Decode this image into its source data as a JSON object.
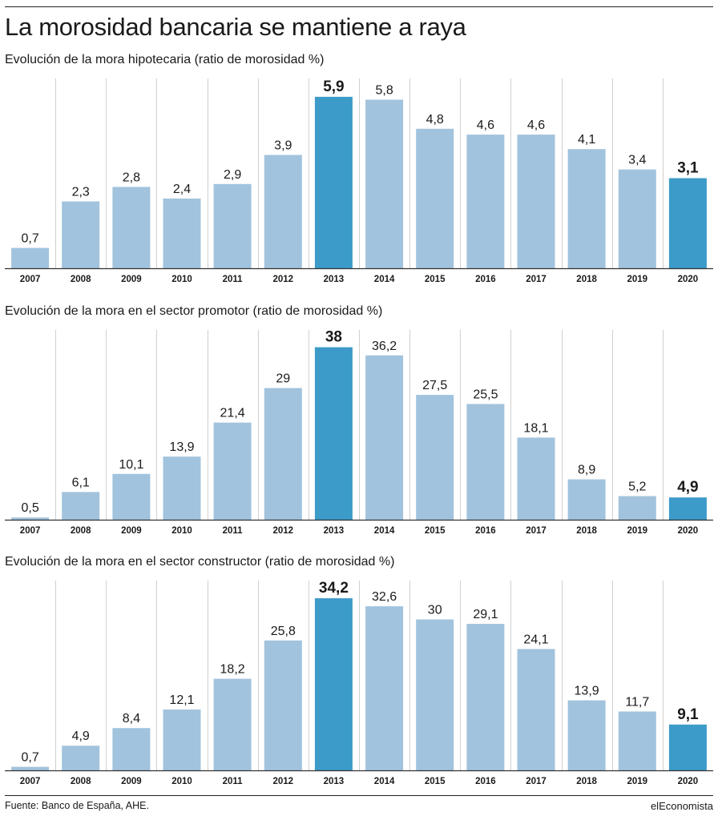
{
  "title": "La morosidad bancaria se mantiene a raya",
  "source": "Fuente: Banco de España, AHE.",
  "brand": "elEconomista",
  "colors": {
    "bar": "#a2c3dd",
    "highlight": "#3c9bc8",
    "grid": "#d0d0d0",
    "axis": "#333333"
  },
  "chart_data": [
    {
      "type": "bar",
      "title": "Evolución de la mora hipotecaria (ratio de morosidad %)",
      "categories": [
        "2007",
        "2008",
        "2009",
        "2010",
        "2011",
        "2012",
        "2013",
        "2014",
        "2015",
        "2016",
        "2017",
        "2018",
        "2019",
        "2020"
      ],
      "values": [
        0.7,
        2.3,
        2.8,
        2.4,
        2.9,
        3.9,
        5.9,
        5.8,
        4.8,
        4.6,
        4.6,
        4.1,
        3.4,
        3.1
      ],
      "labels": [
        "0,7",
        "2,3",
        "2,8",
        "2,4",
        "2,9",
        "3,9",
        "5,9",
        "5,8",
        "4,8",
        "4,6",
        "4,6",
        "4,1",
        "3,4",
        "3,1"
      ],
      "highlighted": [
        "2013",
        "2020"
      ],
      "ylim": [
        0,
        6.2
      ],
      "grid": true
    },
    {
      "type": "bar",
      "title": "Evolución de la mora en el sector promotor (ratio de morosidad %)",
      "categories": [
        "2007",
        "2008",
        "2009",
        "2010",
        "2011",
        "2012",
        "2013",
        "2014",
        "2015",
        "2016",
        "2017",
        "2018",
        "2019",
        "2020"
      ],
      "values": [
        0.5,
        6.1,
        10.1,
        13.9,
        21.4,
        29,
        38,
        36.2,
        27.5,
        25.5,
        18.1,
        8.9,
        5.2,
        4.9
      ],
      "labels": [
        "0,5",
        "6,1",
        "10,1",
        "13,9",
        "21,4",
        "29",
        "38",
        "36,2",
        "27,5",
        "25,5",
        "18,1",
        "8,9",
        "5,2",
        "4,9"
      ],
      "highlighted": [
        "2013",
        "2020"
      ],
      "ylim": [
        0,
        39.7
      ],
      "grid": true
    },
    {
      "type": "bar",
      "title": "Evolución de la mora en el sector constructor (ratio de morosidad %)",
      "categories": [
        "2007",
        "2008",
        "2009",
        "2010",
        "2011",
        "2012",
        "2013",
        "2014",
        "2015",
        "2016",
        "2017",
        "2018",
        "2019",
        "2020"
      ],
      "values": [
        0.7,
        4.9,
        8.4,
        12.1,
        18.2,
        25.8,
        34.2,
        32.6,
        30,
        29.1,
        24.1,
        13.9,
        11.7,
        9.1
      ],
      "labels": [
        "0,7",
        "4,9",
        "8,4",
        "12,1",
        "18,2",
        "25,8",
        "34,2",
        "32,6",
        "30",
        "29,1",
        "24,1",
        "13,9",
        "11,7",
        "9,1"
      ],
      "highlighted": [
        "2013",
        "2020"
      ],
      "ylim": [
        0,
        35.8
      ],
      "grid": true
    }
  ]
}
